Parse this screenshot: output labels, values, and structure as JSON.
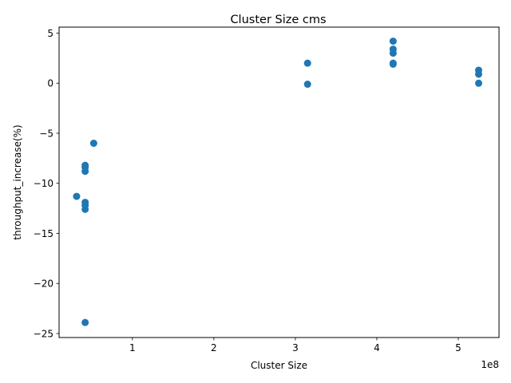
{
  "chart_data": {
    "type": "scatter",
    "title": "Cluster Size cms",
    "xlabel": "Cluster Size",
    "ylabel": "throughput_increase(%)",
    "x_offset_label": "1e8",
    "xlim": [
      10000000.0,
      550000000.0
    ],
    "ylim": [
      -25.4,
      5.6
    ],
    "xticks": [
      100000000.0,
      200000000.0,
      300000000.0,
      400000000.0,
      500000000.0
    ],
    "xtick_labels": [
      "1",
      "2",
      "3",
      "4",
      "5"
    ],
    "yticks": [
      5,
      0,
      -5,
      -10,
      -15,
      -20,
      -25
    ],
    "ytick_labels": [
      "5",
      "0",
      "−5",
      "−10",
      "−15",
      "−20",
      "−25"
    ],
    "grid": false,
    "legend": "none",
    "marker_color": "#1f77b4",
    "points": [
      {
        "x": 315000000,
        "y": 2.0
      },
      {
        "x": 315000000,
        "y": -0.1
      },
      {
        "x": 420000000,
        "y": 4.2
      },
      {
        "x": 420000000,
        "y": 3.4
      },
      {
        "x": 420000000,
        "y": 3.0
      },
      {
        "x": 420000000,
        "y": 2.0
      },
      {
        "x": 420000000,
        "y": 1.9
      },
      {
        "x": 525000000,
        "y": 1.3
      },
      {
        "x": 525000000,
        "y": 0.9
      },
      {
        "x": 525000000,
        "y": 0.0
      },
      {
        "x": 52500000,
        "y": -6.0
      },
      {
        "x": 42000000,
        "y": -8.2
      },
      {
        "x": 42000000,
        "y": -8.4
      },
      {
        "x": 42000000,
        "y": -8.8
      },
      {
        "x": 31500000,
        "y": -11.3
      },
      {
        "x": 42000000,
        "y": -11.9
      },
      {
        "x": 42000000,
        "y": -12.2
      },
      {
        "x": 42000000,
        "y": -12.6
      },
      {
        "x": 42000000,
        "y": -23.9
      }
    ]
  }
}
